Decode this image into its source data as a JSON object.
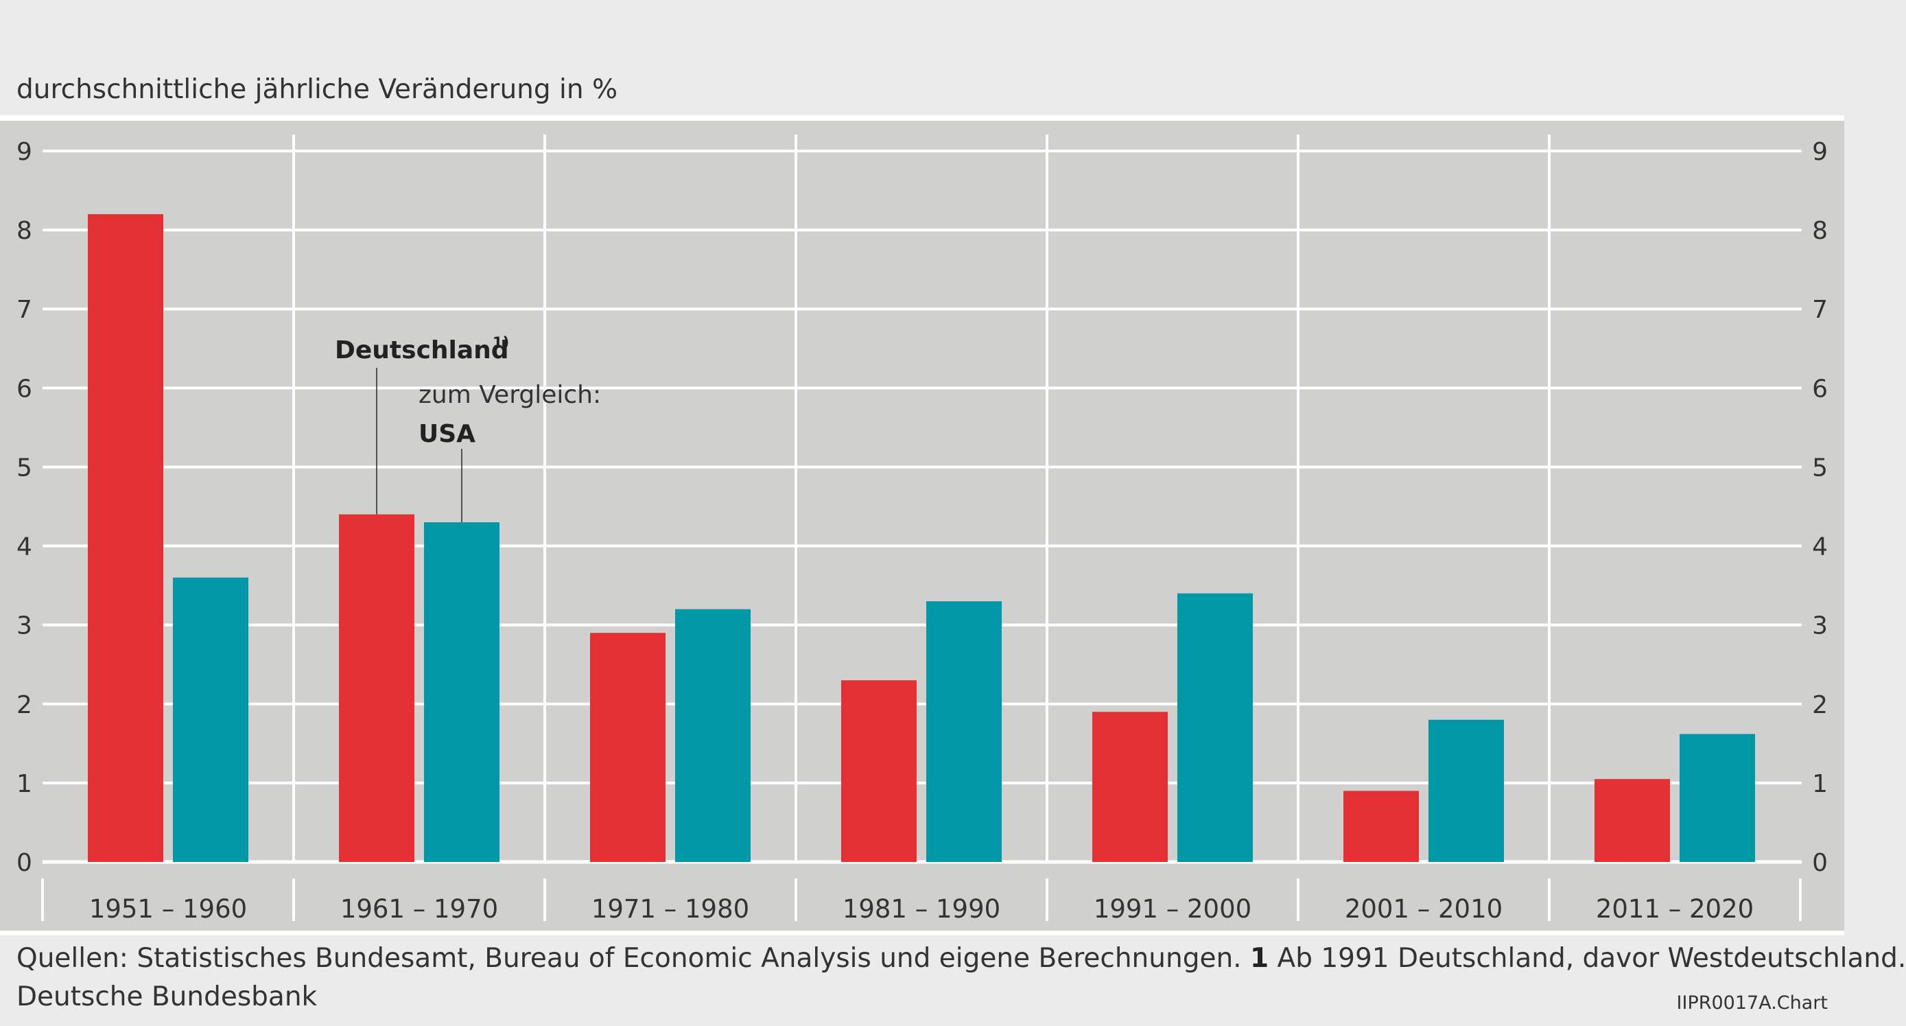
{
  "header": {
    "unit_label": "durchschnittliche jährliche Veränderung in %"
  },
  "chart_data": {
    "type": "bar",
    "categories": [
      "1951 – 1960",
      "1961 – 1970",
      "1971 – 1980",
      "1981 – 1990",
      "1991 – 2000",
      "2001 – 2010",
      "2011 – 2020"
    ],
    "series": [
      {
        "name": "Deutschland",
        "color": "#e33034",
        "values": [
          8.2,
          4.4,
          2.9,
          2.3,
          1.9,
          0.9,
          1.05
        ]
      },
      {
        "name": "USA",
        "color": "#0098a7",
        "values": [
          3.6,
          4.3,
          3.2,
          3.3,
          3.4,
          1.8,
          1.62
        ]
      }
    ],
    "ylim": [
      0,
      9
    ],
    "yticks": [
      "0",
      "1",
      "2",
      "3",
      "4",
      "5",
      "6",
      "7",
      "8",
      "9"
    ],
    "ylabel": "durchschnittliche jährliche Veränderung in %",
    "grid": true,
    "axis_sides": "left and right",
    "plot_background": "#d0d0ce",
    "annotations": {
      "germany_label": "Deutschland",
      "germany_footnote": "1)",
      "usa_prefix": "zum Vergleich:",
      "usa_label": "USA"
    }
  },
  "footer": {
    "sources": "Quellen: Statistisches Bundesamt, Bureau of Economic Analysis und eigene Berechnungen.",
    "footnote_number": "1",
    "footnote_text": "Ab 1991 Deutschland, davor Westdeutschland.",
    "publisher": "Deutsche Bundesbank",
    "chart_code": "IIPR0017A.Chart"
  }
}
